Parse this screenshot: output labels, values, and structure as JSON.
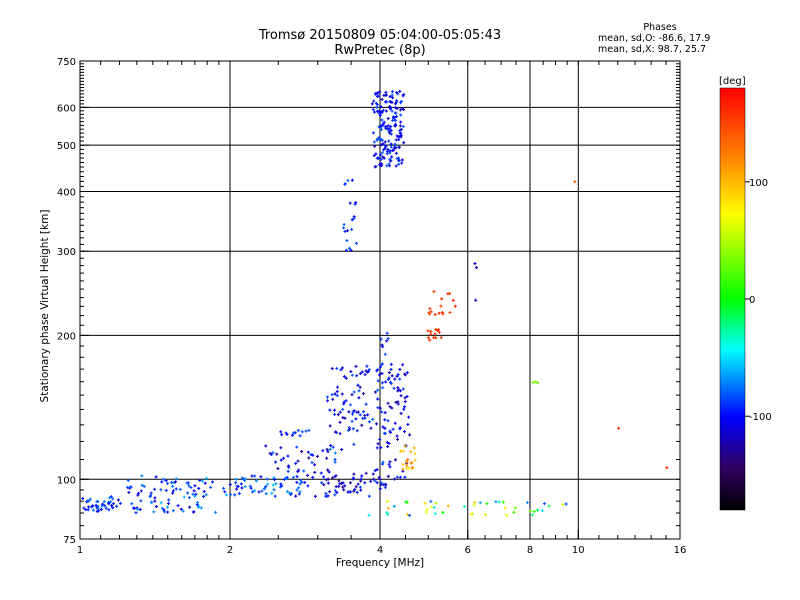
{
  "header": {
    "title_line1": "Tromsø 20150809 05:04:00-05:05:43",
    "title_line2": "RwPretec (8p)"
  },
  "phase_info": {
    "heading": "Phases",
    "o_mode": "mean, sd,O: -86.6, 17.9",
    "x_mode": "mean, sd,X: 98.7, 25.7"
  },
  "colorbar": {
    "unit": "[deg]",
    "ticks": [
      {
        "value": 100,
        "label": "100"
      },
      {
        "value": 0,
        "label": "0"
      },
      {
        "value": -100,
        "label": "-100"
      }
    ],
    "range": [
      -180,
      180
    ],
    "colors": [
      "#ff0000",
      "#ff8000",
      "#ffff00",
      "#00ff00",
      "#00ffff",
      "#0000ff",
      "#300060",
      "#000000"
    ]
  },
  "chart_data": {
    "type": "scatter",
    "xlabel": "Frequency [MHz]",
    "ylabel": "Stationary phase Virtual Height [km]",
    "xscale": "log",
    "yscale": "log",
    "xlim": [
      1,
      16
    ],
    "ylim": [
      75,
      750
    ],
    "xticks": [
      {
        "value": 1,
        "label": "1"
      },
      {
        "value": 2,
        "label": "2"
      },
      {
        "value": 4,
        "label": "4"
      },
      {
        "value": 6,
        "label": "6"
      },
      {
        "value": 8,
        "label": "8"
      },
      {
        "value": 10,
        "label": "10"
      },
      {
        "value": 16,
        "label": "16"
      }
    ],
    "xgrid": [
      2,
      4,
      6,
      8,
      10
    ],
    "yticks": [
      {
        "value": 75,
        "label": "75"
      },
      {
        "value": 100,
        "label": "100"
      },
      {
        "value": 200,
        "label": "200"
      },
      {
        "value": 300,
        "label": "300"
      },
      {
        "value": 400,
        "label": "400"
      },
      {
        "value": 500,
        "label": "500"
      },
      {
        "value": 600,
        "label": "600"
      },
      {
        "value": 750,
        "label": "750"
      }
    ],
    "ygrid": [
      100,
      200,
      300,
      400,
      500,
      600
    ],
    "grid": true,
    "color_by": "phase [deg]",
    "point_groups": [
      {
        "f": [
          1.0,
          1.2
        ],
        "h": [
          85,
          92
        ],
        "phase": [
          -70,
          -110
        ],
        "n": 40
      },
      {
        "f": [
          1.2,
          1.9
        ],
        "h": [
          85,
          102
        ],
        "phase": [
          -60,
          -115
        ],
        "n": 90
      },
      {
        "f": [
          1.9,
          3.0
        ],
        "h": [
          92,
          102
        ],
        "phase": [
          -60,
          -110
        ],
        "n": 70
      },
      {
        "f": [
          2.3,
          3.4
        ],
        "h": [
          103,
          118
        ],
        "phase": [
          -70,
          -130
        ],
        "n": 40
      },
      {
        "f": [
          2.5,
          2.9
        ],
        "h": [
          123,
          127
        ],
        "phase": [
          -80,
          -115
        ],
        "n": 12
      },
      {
        "f": [
          3.0,
          3.9
        ],
        "h": [
          92,
          103
        ],
        "phase": [
          -85,
          -140
        ],
        "n": 50
      },
      {
        "f": [
          3.1,
          3.9
        ],
        "h": [
          115,
          175
        ],
        "phase": [
          -80,
          -125
        ],
        "n": 80
      },
      {
        "f": [
          3.9,
          4.2
        ],
        "h": [
          95,
          205
        ],
        "phase": [
          -80,
          -120
        ],
        "n": 60
      },
      {
        "f": [
          4.15,
          4.6
        ],
        "h": [
          100,
          175
        ],
        "phase": [
          -85,
          -130
        ],
        "n": 55
      },
      {
        "f": [
          4.4,
          4.75
        ],
        "h": [
          104,
          118
        ],
        "phase": [
          85,
          125
        ],
        "n": 20
      },
      {
        "f": [
          3.35,
          3.6
        ],
        "h": [
          300,
          430
        ],
        "phase": [
          -75,
          -110
        ],
        "n": 20
      },
      {
        "f": [
          3.85,
          4.5
        ],
        "h": [
          450,
          650
        ],
        "phase": [
          -80,
          -120
        ],
        "n": 170
      },
      {
        "f": [
          3.7,
          9.8
        ],
        "h": [
          84,
          90
        ],
        "phase": [
          -95,
          105
        ],
        "n": 45
      },
      {
        "f": [
          4.9,
          5.7
        ],
        "h": [
          220,
          248
        ],
        "phase": [
          145,
          160
        ],
        "n": 16
      },
      {
        "f": [
          4.95,
          5.35
        ],
        "h": [
          195,
          206
        ],
        "phase": [
          150,
          160
        ],
        "n": 14
      },
      {
        "f": [
          6.2,
          6.25
        ],
        "h": [
          230,
          285
        ],
        "phase": [
          -110,
          -120
        ],
        "n": 3
      },
      {
        "f": [
          8.1,
          8.3
        ],
        "h": [
          158,
          160
        ],
        "phase": [
          30,
          40
        ],
        "n": 3
      },
      {
        "f": [
          9.8,
          9.9
        ],
        "h": [
          418,
          420
        ],
        "phase": [
          140,
          145
        ],
        "n": 1
      },
      {
        "f": [
          12.0,
          12.1
        ],
        "h": [
          127,
          128
        ],
        "phase": [
          150,
          155
        ],
        "n": 1
      },
      {
        "f": [
          15.0,
          15.1
        ],
        "h": [
          105,
          106
        ],
        "phase": [
          150,
          155
        ],
        "n": 1
      }
    ]
  }
}
